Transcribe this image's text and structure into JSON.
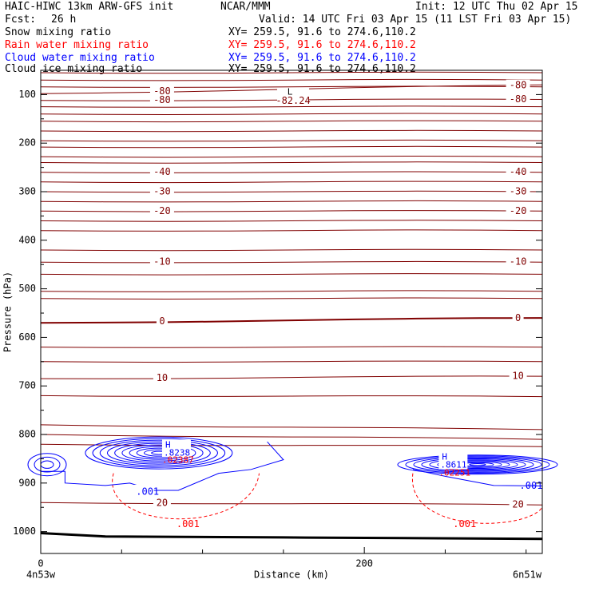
{
  "header": {
    "model": "HAIC-HIWC 13km ARW-GFS init",
    "org": "NCAR/MMM",
    "init": "Init: 12 UTC Thu 02 Apr 15",
    "fcst_label": "Fcst:",
    "fcst_value": "26 h",
    "valid": "Valid: 14 UTC Fri 03 Apr 15 (11 LST Fri 03 Apr 15)",
    "fields": [
      {
        "label": "Snow mixing ratio",
        "xy": "XY= 259.5, 91.6 to 274.6,110.2",
        "color": "#000000"
      },
      {
        "label": "Rain water mixing ratio",
        "xy": "XY= 259.5, 91.6 to 274.6,110.2",
        "color": "#ff0000"
      },
      {
        "label": "Cloud water mixing ratio",
        "xy": "XY= 259.5, 91.6 to 274.6,110.2",
        "color": "#0000ff"
      },
      {
        "label": "Cloud ice mixing ratio",
        "xy": "XY= 259.5, 91.6 to 274.6,110.2",
        "color": "#000000"
      }
    ]
  },
  "chart_data": {
    "type": "line",
    "xlabel": "Distance (km)",
    "ylabel": "Pressure (hPa)",
    "x_ticks": [
      0,
      200
    ],
    "x_range": [
      0,
      310
    ],
    "y_ticks": [
      100,
      200,
      300,
      400,
      500,
      600,
      700,
      800,
      900,
      1000
    ],
    "y_range": [
      50,
      1045
    ],
    "x_endpoint_labels": [
      "4n53w",
      "6n51w"
    ],
    "temperature_contours": [
      {
        "level": -80,
        "label": "-80",
        "pressure_left": 98,
        "pressure_right": 80
      },
      {
        "level": -80,
        "label": "-80",
        "pressure_left": 112,
        "pressure_right": 110
      },
      {
        "level": -40,
        "label": "-40",
        "pressure_left": 260,
        "pressure_right": 260
      },
      {
        "level": -30,
        "label": "-30",
        "pressure_left": 300,
        "pressure_right": 300
      },
      {
        "level": -20,
        "label": "-20",
        "pressure_left": 340,
        "pressure_right": 340
      },
      {
        "level": -10,
        "label": "-10",
        "pressure_left": 445,
        "pressure_right": 445
      },
      {
        "level": 0,
        "label": "0",
        "pressure_left": 570,
        "pressure_right": 560
      },
      {
        "level": 10,
        "label": "10",
        "pressure_left": 685,
        "pressure_right": 680
      },
      {
        "level": 20,
        "label": "20",
        "pressure_left": 940,
        "pressure_right": 945
      }
    ],
    "extrema": [
      {
        "type": "L",
        "label": "-82.24",
        "x_km": 156,
        "pressure": 112
      },
      {
        "type": "H",
        "label": ".8238",
        "x_km": 76,
        "pressure": 835,
        "color": "#0000ff"
      },
      {
        "type": "H",
        "label": ".02387",
        "x_km": 76,
        "pressure": 853,
        "color": "#ff0000"
      },
      {
        "type": "H",
        "label": ".8611",
        "x_km": 247,
        "pressure": 860,
        "color": "#0000ff"
      },
      {
        "type": "H",
        "label": ".02251",
        "x_km": 247,
        "pressure": 880,
        "color": "#ff0000"
      }
    ],
    "cloud_water_contour_label": ".001",
    "rain_water_contour_label": ".001",
    "surface_pressure_left": 1003,
    "surface_pressure_right": 1015
  }
}
